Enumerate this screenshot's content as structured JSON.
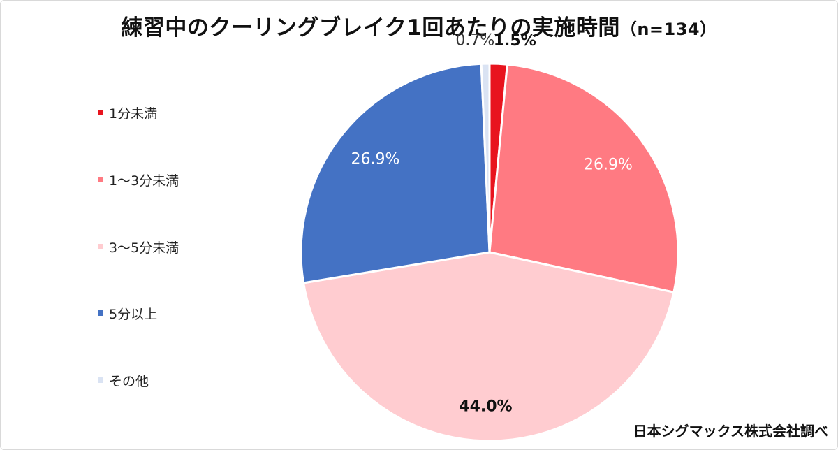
{
  "chart_data": {
    "type": "pie",
    "title": "練習中のクーリングブレイク1回あたりの実施時間",
    "subtitle": "（n=134）",
    "categories": [
      "1分未満",
      "1～3分未満",
      "3～5分未満",
      "5分以上",
      "その他"
    ],
    "values": [
      1.5,
      26.9,
      44.0,
      26.9,
      0.7
    ],
    "labels": [
      "1.5%",
      "26.9%",
      "44.0%",
      "26.9%",
      "0.7%"
    ],
    "colors": [
      "#e8141e",
      "#ff7a82",
      "#ffccd0",
      "#4472c4",
      "#dae3f3"
    ],
    "label_colors": [
      "#111111",
      "#ffffff",
      "#111111",
      "#ffffff",
      "#333333"
    ],
    "legend_position": "left"
  },
  "source": "日本シグマックス株式会社調べ"
}
